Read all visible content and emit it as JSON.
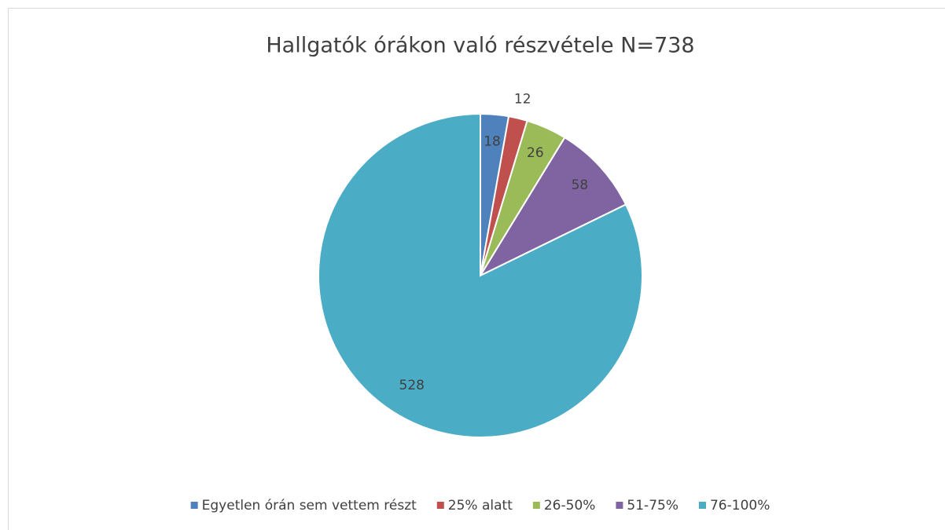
{
  "chart_data": {
    "type": "pie",
    "title": "Hallgatók órákon való részvétele N=738",
    "categories": [
      "Egyetlen órán sem vettem részt",
      "25% alatt",
      "26-50%",
      "51-75%",
      "76-100%"
    ],
    "values": [
      18,
      12,
      26,
      58,
      528
    ],
    "colors": [
      "#4f81bd",
      "#c0504d",
      "#9bbb59",
      "#8064a2",
      "#4bacc6"
    ],
    "legend": "bottom"
  }
}
